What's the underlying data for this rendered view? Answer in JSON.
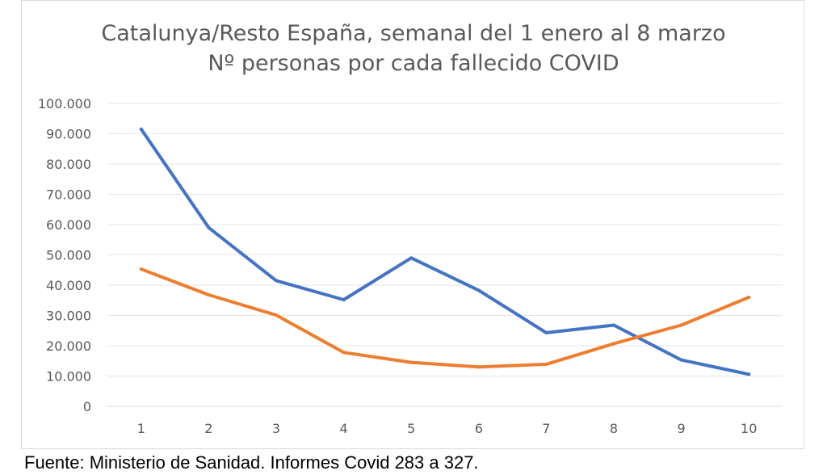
{
  "chart_data": {
    "type": "line",
    "title": "Catalunya/Resto España, semanal del 1 enero al 8 marzo",
    "subtitle": "Nº personas por cada fallecido COVID",
    "x": [
      1,
      2,
      3,
      4,
      5,
      6,
      7,
      8,
      9,
      10
    ],
    "x_tick_labels": [
      "1",
      "2",
      "3",
      "4",
      "5",
      "6",
      "7",
      "8",
      "9",
      "10"
    ],
    "y_tick_labels": [
      "0",
      "10.000",
      "20.000",
      "30.000",
      "40.000",
      "50.000",
      "60.000",
      "70.000",
      "80.000",
      "90.000",
      "100.000"
    ],
    "ylim": [
      0,
      100000
    ],
    "grid": true,
    "legend": "none",
    "series": [
      {
        "color": "#4472c4",
        "values": [
          91500,
          59000,
          41500,
          35200,
          49000,
          38300,
          24300,
          26800,
          15300,
          10600
        ]
      },
      {
        "color": "#ed7d31",
        "values": [
          45300,
          36800,
          30100,
          17800,
          14500,
          13000,
          13900,
          20700,
          26800,
          36000
        ]
      }
    ]
  },
  "source_note": "Fuente: Ministerio de Sanidad. Informes Covid 283 a 327."
}
